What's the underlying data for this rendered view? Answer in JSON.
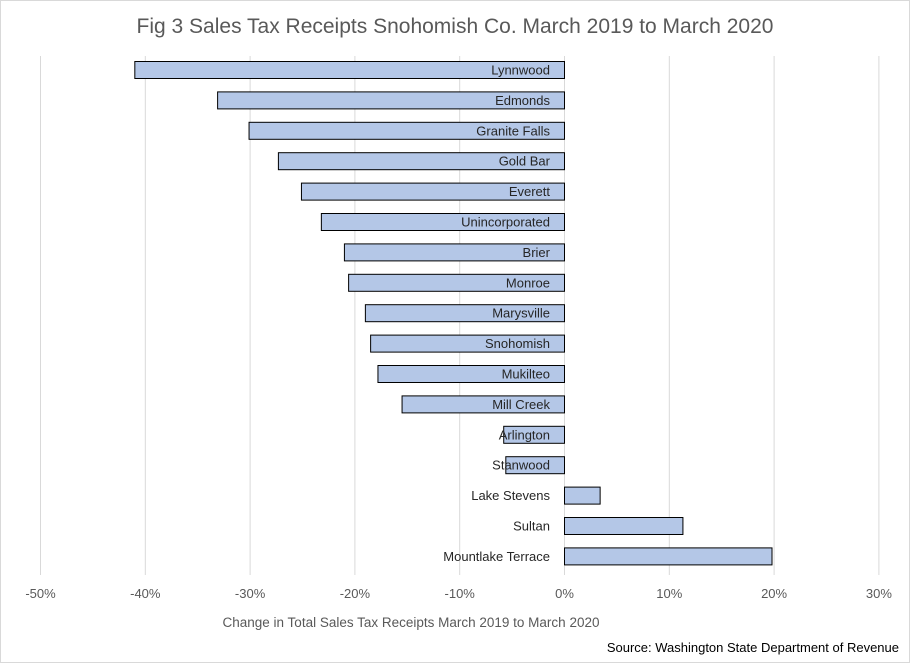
{
  "chart_data": {
    "type": "bar",
    "orientation": "horizontal",
    "title": "Fig 3 Sales Tax Receipts Snohomish Co. March 2019 to March 2020",
    "xlabel": "Change in Total Sales Tax Receipts March 2019 to March 2020",
    "ylabel": "",
    "source": "Source: Washington State Department of Revenue",
    "categories": [
      "Lynnwood",
      "Edmonds",
      "Granite Falls",
      "Gold Bar",
      "Everett",
      "Unincorporated",
      "Brier",
      "Monroe",
      "Marysville",
      "Snohomish",
      "Mukilteo",
      "Mill Creek",
      "Arlington",
      "Stanwood",
      "Lake Stevens",
      "Sultan",
      "Mountlake Terrace"
    ],
    "values": [
      -41.0,
      -33.1,
      -30.1,
      -27.3,
      -25.1,
      -23.2,
      -21.0,
      -20.6,
      -19.0,
      -18.5,
      -17.8,
      -15.5,
      -5.8,
      -5.6,
      3.4,
      11.3,
      19.8
    ],
    "xlim": [
      -50,
      30
    ],
    "ticks": [
      -50,
      -40,
      -30,
      -20,
      -10,
      0,
      10,
      20,
      30
    ],
    "tick_labels": [
      "-50%",
      "-40%",
      "-30%",
      "-20%",
      "-10%",
      "0%",
      "10%",
      "20%",
      "30%"
    ],
    "grid": "vertical",
    "legend": "none",
    "colors": {
      "bar_fill": "#b4c7e7",
      "bar_edge": "#000000",
      "grid": "#d9d9d9"
    }
  }
}
